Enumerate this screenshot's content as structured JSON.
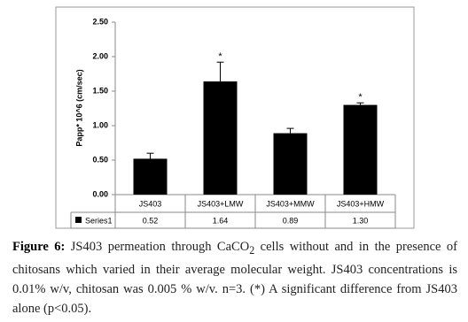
{
  "chart_data": {
    "type": "bar",
    "y_label": "Papp* 10^6 (cm/sec)",
    "categories": [
      "JS403",
      "JS403+LMW",
      "JS403+MMW",
      "JS403+HMW"
    ],
    "series": [
      {
        "name": "Series1",
        "color": "#000000",
        "values": [
          0.52,
          1.64,
          0.89,
          1.3
        ],
        "value_labels": [
          "0.52",
          "1.64",
          "0.89",
          "1.30"
        ],
        "errors": [
          0.08,
          0.28,
          0.07,
          0.03
        ]
      }
    ],
    "significance": [
      null,
      "*",
      null,
      "*"
    ],
    "ylim": [
      0,
      2.5
    ],
    "yticks": [
      {
        "value": 0,
        "label": "0.00"
      },
      {
        "value": 0.5,
        "label": "0.50"
      },
      {
        "value": 1,
        "label": "1.00"
      },
      {
        "value": 1.5,
        "label": "1.50"
      },
      {
        "value": 2,
        "label": "2.00"
      },
      {
        "value": 2.5,
        "label": "2.50"
      }
    ],
    "grid": false
  },
  "caption": {
    "label": "Figure 6:",
    "text_before_sub": " JS403 permeation through CaCO",
    "subscript": "2",
    "text_after_sub": " cells without and in the presence of chitosans which varied in their average molecular weight. JS403 concentrations is 0.01% w/v, chitosan was 0.005 % w/v. n=3.  (*) A significant difference from JS403 alone (p<0.05)."
  }
}
